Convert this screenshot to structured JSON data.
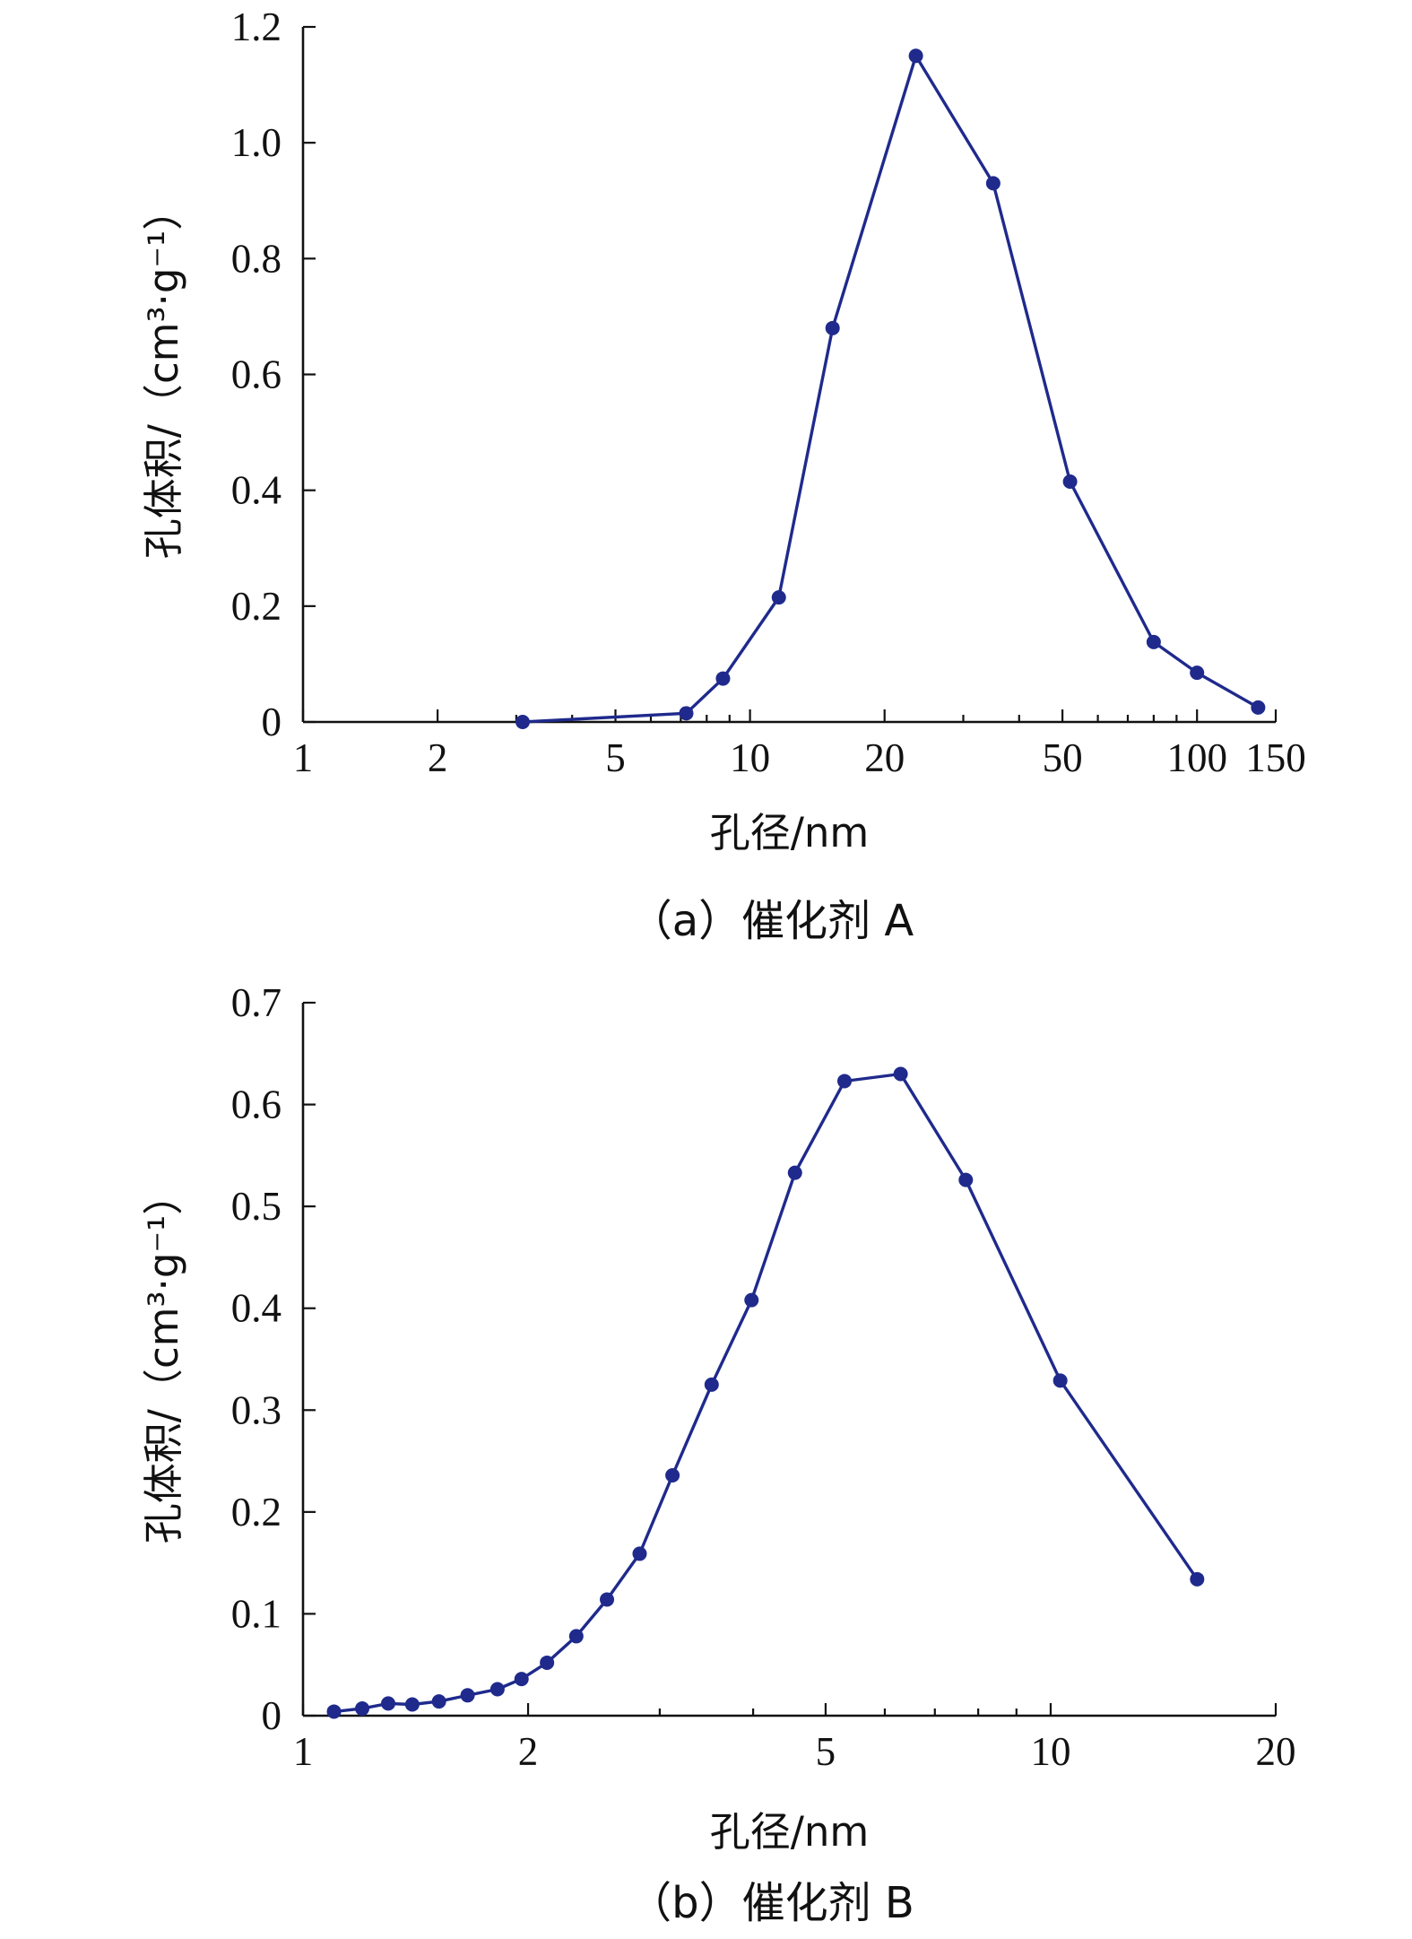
{
  "chart_data": [
    {
      "type": "line",
      "xscale": "log",
      "xlim": [
        1,
        150
      ],
      "ylim": [
        0,
        1.2
      ],
      "xlabel": "孔径/nm",
      "ylabel": "孔体积/（cm³·g⁻¹）",
      "caption": "（a）催化剂 A",
      "xticks": [
        1,
        2,
        5,
        10,
        20,
        50,
        100,
        150
      ],
      "yticks": [
        0,
        0.2,
        0.4,
        0.6,
        0.8,
        1.0,
        1.2
      ],
      "ytick_labels": [
        "0",
        "0.2",
        "0.4",
        "0.6",
        "0.8",
        "1.0",
        "1.2"
      ],
      "color": "#1f2a8c",
      "x": [
        3.1,
        7.2,
        8.7,
        11.6,
        15.3,
        23.5,
        35.0,
        52.0,
        80.0,
        100.0,
        137.0
      ],
      "y": [
        0.0,
        0.015,
        0.075,
        0.215,
        0.68,
        1.15,
        0.93,
        0.415,
        0.138,
        0.085,
        0.025
      ]
    },
    {
      "type": "line",
      "xscale": "log",
      "xlim": [
        1,
        20
      ],
      "ylim": [
        0,
        0.7
      ],
      "xlabel": "孔径/nm",
      "ylabel": "孔体积/（cm³·g⁻¹）",
      "caption": "（b）催化剂 B",
      "xticks": [
        1,
        2,
        5,
        10,
        20
      ],
      "yticks": [
        0,
        0.1,
        0.2,
        0.3,
        0.4,
        0.5,
        0.6,
        0.7
      ],
      "ytick_labels": [
        "0",
        "0.1",
        "0.2",
        "0.3",
        "0.4",
        "0.5",
        "0.6",
        "0.7"
      ],
      "color": "#1f2a8c",
      "x": [
        1.1,
        1.2,
        1.3,
        1.4,
        1.52,
        1.66,
        1.82,
        1.96,
        2.12,
        2.32,
        2.55,
        2.82,
        3.12,
        3.52,
        3.98,
        4.55,
        5.3,
        6.3,
        7.7,
        10.3,
        15.7
      ],
      "y": [
        0.004,
        0.007,
        0.012,
        0.011,
        0.014,
        0.02,
        0.026,
        0.036,
        0.052,
        0.078,
        0.114,
        0.159,
        0.236,
        0.325,
        0.408,
        0.533,
        0.623,
        0.63,
        0.526,
        0.329,
        0.134
      ]
    }
  ]
}
